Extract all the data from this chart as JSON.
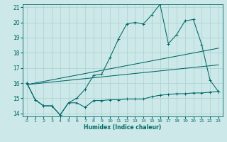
{
  "title": "",
  "xlabel": "Humidex (Indice chaleur)",
  "xlim": [
    -0.5,
    23.5
  ],
  "ylim": [
    13.8,
    21.2
  ],
  "yticks": [
    14,
    15,
    16,
    17,
    18,
    19,
    20,
    21
  ],
  "xticks": [
    0,
    1,
    2,
    3,
    4,
    5,
    6,
    7,
    8,
    9,
    10,
    11,
    12,
    13,
    14,
    15,
    16,
    17,
    18,
    19,
    20,
    21,
    22,
    23
  ],
  "background_color": "#cce8e8",
  "grid_color": "#b0d4d4",
  "line_color": "#006666",
  "lines": [
    {
      "x": [
        0,
        1,
        2,
        3,
        4,
        5,
        6,
        7,
        8,
        9,
        10,
        11,
        12,
        13,
        14,
        15,
        16,
        17,
        18,
        19,
        20,
        21,
        22,
        23
      ],
      "y": [
        16.0,
        14.9,
        14.5,
        14.5,
        13.9,
        14.7,
        14.7,
        14.4,
        14.85,
        14.85,
        14.9,
        14.9,
        14.95,
        14.95,
        14.95,
        15.1,
        15.2,
        15.25,
        15.3,
        15.3,
        15.35,
        15.35,
        15.4,
        15.45
      ]
    },
    {
      "x": [
        0,
        23
      ],
      "y": [
        15.9,
        18.3
      ]
    },
    {
      "x": [
        0,
        23
      ],
      "y": [
        15.9,
        17.2
      ]
    },
    {
      "x": [
        0,
        1,
        2,
        3,
        4,
        5,
        6,
        7,
        8,
        9,
        10,
        11,
        12,
        13,
        14,
        15,
        16,
        17,
        18,
        19,
        20,
        21,
        22,
        23
      ],
      "y": [
        16.0,
        14.9,
        14.5,
        14.5,
        13.9,
        14.7,
        15.0,
        15.6,
        16.5,
        16.6,
        17.7,
        18.9,
        19.9,
        20.0,
        19.9,
        20.5,
        21.2,
        18.6,
        19.2,
        20.1,
        20.2,
        18.55,
        16.2,
        15.45
      ]
    }
  ]
}
